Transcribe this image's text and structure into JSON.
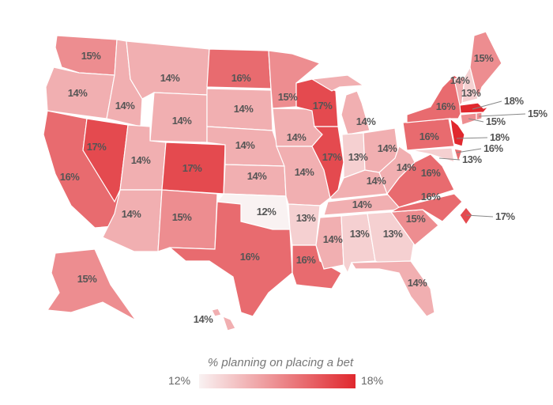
{
  "chart_data": {
    "type": "choropleth",
    "legend": {
      "title": "% planning on placing a bet",
      "min_label": "12%",
      "max_label": "18%",
      "min": 12,
      "max": 18,
      "color_min": "#f9f2f2",
      "color_max": "#e0282e"
    },
    "regions": [
      {
        "region": "WA",
        "value": 15
      },
      {
        "region": "OR",
        "value": 14
      },
      {
        "region": "CA",
        "value": 16
      },
      {
        "region": "NV",
        "value": 17
      },
      {
        "region": "ID",
        "value": 14
      },
      {
        "region": "MT",
        "value": 14
      },
      {
        "region": "WY",
        "value": 14
      },
      {
        "region": "UT",
        "value": 14
      },
      {
        "region": "AZ",
        "value": 14
      },
      {
        "region": "CO",
        "value": 17
      },
      {
        "region": "NM",
        "value": 15
      },
      {
        "region": "ND",
        "value": 16
      },
      {
        "region": "SD",
        "value": 14
      },
      {
        "region": "NE",
        "value": 14
      },
      {
        "region": "KS",
        "value": 14
      },
      {
        "region": "OK",
        "value": 12
      },
      {
        "region": "TX",
        "value": 16
      },
      {
        "region": "MN",
        "value": 15
      },
      {
        "region": "IA",
        "value": 14
      },
      {
        "region": "MO",
        "value": 14
      },
      {
        "region": "AR",
        "value": 13
      },
      {
        "region": "LA",
        "value": 16
      },
      {
        "region": "WI",
        "value": 17
      },
      {
        "region": "IL",
        "value": 17
      },
      {
        "region": "MI",
        "value": 14
      },
      {
        "region": "IN",
        "value": 13
      },
      {
        "region": "OH",
        "value": 14
      },
      {
        "region": "KY",
        "value": 14
      },
      {
        "region": "TN",
        "value": 14
      },
      {
        "region": "MS",
        "value": 14
      },
      {
        "region": "AL",
        "value": 13
      },
      {
        "region": "GA",
        "value": 13
      },
      {
        "region": "FL",
        "value": 14
      },
      {
        "region": "SC",
        "value": 15
      },
      {
        "region": "NC",
        "value": 16
      },
      {
        "region": "VA",
        "value": 16
      },
      {
        "region": "WV",
        "value": 14
      },
      {
        "region": "PA",
        "value": 16
      },
      {
        "region": "NY",
        "value": 16
      },
      {
        "region": "MD",
        "value": 13
      },
      {
        "region": "DE",
        "value": 16
      },
      {
        "region": "NJ",
        "value": 18
      },
      {
        "region": "CT",
        "value": 15
      },
      {
        "region": "RI",
        "value": 15
      },
      {
        "region": "MA",
        "value": 18
      },
      {
        "region": "VT",
        "value": 14
      },
      {
        "region": "NH",
        "value": 13
      },
      {
        "region": "ME",
        "value": 15
      },
      {
        "region": "AK",
        "value": 15
      },
      {
        "region": "HI",
        "value": 14
      },
      {
        "region": "DC",
        "value": 17
      }
    ]
  }
}
